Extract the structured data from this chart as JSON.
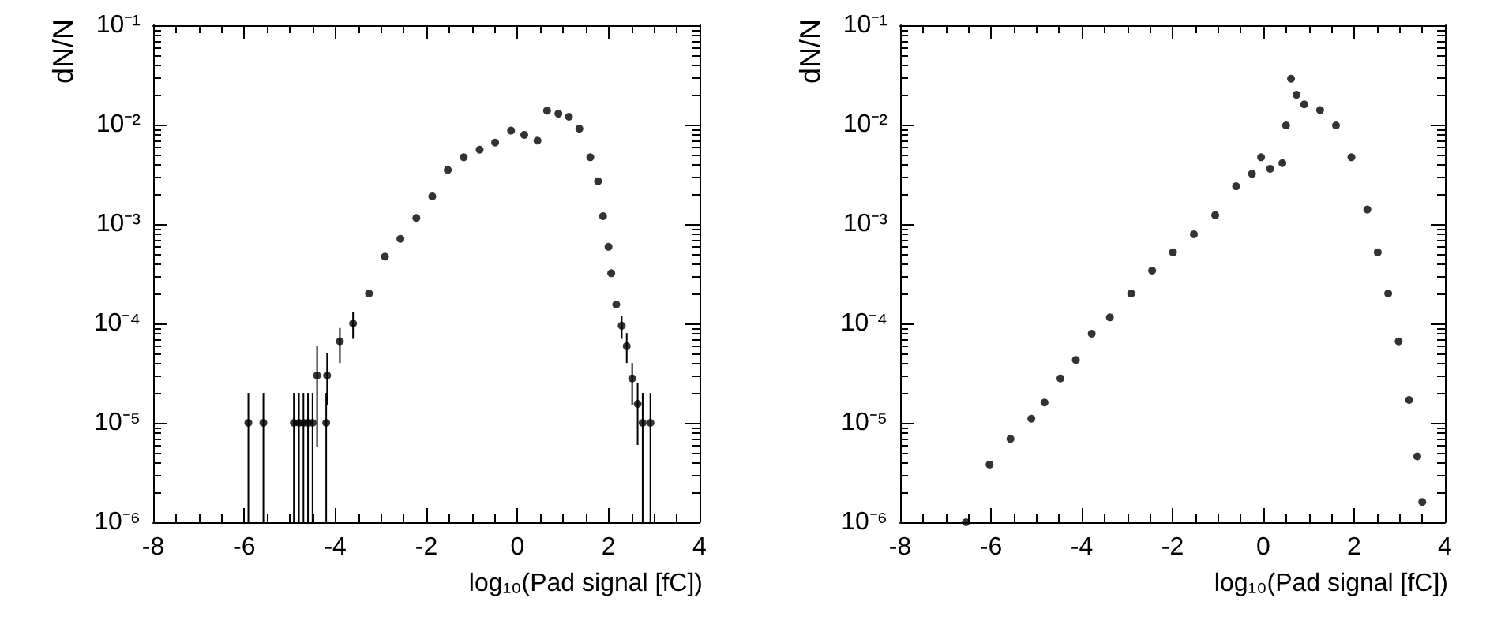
{
  "chart_data": [
    {
      "type": "scatter",
      "xlabel": "log₁₀(Pad signal [fC])",
      "ylabel": "dN/N",
      "log": "y",
      "grid": false,
      "marker": "circle",
      "xlim": [
        -8,
        4
      ],
      "xticks": [
        -8,
        -6,
        -4,
        -2,
        0,
        2,
        4
      ],
      "ylim": [
        1e-06,
        0.1
      ],
      "yticks": [
        {
          "value": 1e-06,
          "label": "10⁻⁶"
        },
        {
          "value": 1e-05,
          "label": "10⁻⁵"
        },
        {
          "value": 0.0001,
          "label": "10⁻⁴"
        },
        {
          "value": 0.001,
          "label": "10⁻³"
        },
        {
          "value": 0.01,
          "label": "10⁻²"
        },
        {
          "value": 0.1,
          "label": "10⁻¹"
        }
      ],
      "series": [
        {
          "color": "#000000",
          "x": [
            -5.91,
            -5.58,
            -4.91,
            -4.8,
            -4.7,
            -4.6,
            -4.5,
            -4.4,
            -4.2,
            -4.18,
            -3.9,
            -3.61,
            -3.26,
            -2.91,
            -2.57,
            -2.22,
            -1.87,
            -1.53,
            -1.18,
            -0.83,
            -0.49,
            -0.14,
            0.15,
            0.44,
            0.65,
            0.9,
            1.13,
            1.36,
            1.6,
            1.77,
            1.88,
            2.0,
            2.06,
            2.17,
            2.29,
            2.4,
            2.52,
            2.64,
            2.75,
            2.92
          ],
          "values": [
            1e-05,
            1e-05,
            1e-05,
            1e-05,
            1e-05,
            1e-05,
            1e-05,
            3e-05,
            1e-05,
            3e-05,
            6.6e-05,
            0.0001,
            0.0002,
            0.00047,
            0.00071,
            0.00115,
            0.0019,
            0.0035,
            0.0047,
            0.0056,
            0.0066,
            0.0087,
            0.0079,
            0.0069,
            0.0138,
            0.0129,
            0.012,
            0.0091,
            0.0047,
            0.0027,
            0.0012,
            0.00059,
            0.00032,
            0.000155,
            9.5e-05,
            5.9e-05,
            2.8e-05,
            1.55e-05,
            1e-05,
            1e-05
          ],
          "errors": [
            [
              1e-06,
              2e-05
            ],
            [
              1e-06,
              2e-05
            ],
            [
              1e-06,
              2e-05
            ],
            [
              1e-06,
              2e-05
            ],
            [
              1e-06,
              2e-05
            ],
            [
              1e-06,
              2e-05
            ],
            [
              1e-06,
              2e-05
            ],
            [
              5.7e-06,
              6e-05
            ],
            [
              1e-06,
              2e-05
            ],
            [
              1.5e-05,
              5e-05
            ],
            [
              4e-05,
              9e-05
            ],
            [
              7e-05,
              0.00013
            ],
            null,
            null,
            null,
            null,
            null,
            null,
            null,
            null,
            null,
            null,
            null,
            null,
            null,
            null,
            null,
            null,
            null,
            null,
            null,
            null,
            null,
            null,
            [
              7e-05,
              0.00012
            ],
            [
              4e-05,
              8e-05
            ],
            [
              1.5e-05,
              4e-05
            ],
            [
              6e-06,
              2.5e-05
            ],
            [
              1e-06,
              2e-05
            ],
            [
              1e-06,
              2e-05
            ]
          ]
        }
      ]
    },
    {
      "type": "scatter",
      "xlabel": "log₁₀(Pad signal [fC])",
      "ylabel": "dN/N",
      "log": "y",
      "grid": false,
      "marker": "circle",
      "xlim": [
        -8,
        4
      ],
      "xticks": [
        -8,
        -6,
        -4,
        -2,
        0,
        2,
        4
      ],
      "ylim": [
        1e-06,
        0.1
      ],
      "yticks": [
        {
          "value": 1e-06,
          "label": "10⁻⁶"
        },
        {
          "value": 1e-05,
          "label": "10⁻⁵"
        },
        {
          "value": 0.0001,
          "label": "10⁻⁴"
        },
        {
          "value": 0.001,
          "label": "10⁻³"
        },
        {
          "value": 0.01,
          "label": "10⁻²"
        },
        {
          "value": 0.1,
          "label": "10⁻¹"
        }
      ],
      "series": [
        {
          "color": "#000000",
          "x": [
            -6.55,
            -6.03,
            -5.57,
            -5.11,
            -4.82,
            -4.47,
            -4.13,
            -3.78,
            -3.38,
            -2.91,
            -2.45,
            -1.99,
            -1.53,
            -1.06,
            -0.6,
            -0.25,
            -0.05,
            0.15,
            0.42,
            0.5,
            0.61,
            0.73,
            0.9,
            1.25,
            1.6,
            1.94,
            2.29,
            2.52,
            2.75,
            2.98,
            3.21,
            3.39,
            3.5
          ],
          "values": [
            1e-06,
            3.8e-06,
            6.9e-06,
            1.1e-05,
            1.6e-05,
            2.8e-05,
            4.3e-05,
            7.9e-05,
            0.000115,
            0.0002,
            0.00034,
            0.00052,
            0.00079,
            0.00123,
            0.0024,
            0.0032,
            0.0047,
            0.0036,
            0.0041,
            0.0098,
            0.029,
            0.02,
            0.016,
            0.014,
            0.0098,
            0.0047,
            0.0014,
            0.00052,
            0.0002,
            6.6e-05,
            1.7e-05,
            4.6e-06,
            1.6e-06
          ]
        }
      ]
    }
  ]
}
